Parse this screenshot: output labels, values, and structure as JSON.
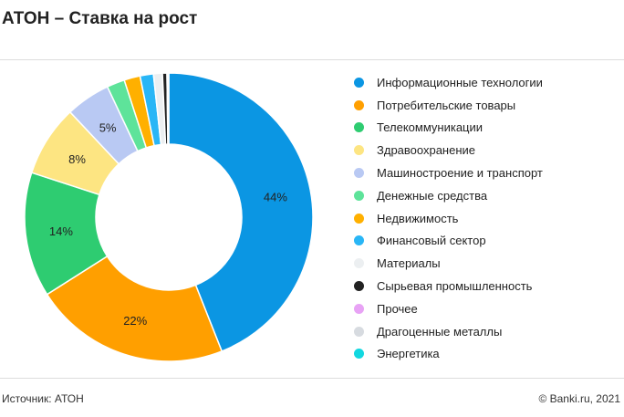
{
  "title": "АТОН – Ставка на рост",
  "footer": {
    "source": "Источник: АТОН",
    "copyright": "© Banki.ru, 2021"
  },
  "chart_data": {
    "type": "pie",
    "donut": true,
    "title": "АТОН – Ставка на рост",
    "categories": [
      "Информационные технологии",
      "Потребительские товары",
      "Телекоммуникации",
      "Здравоохранение",
      "Машиностроение и транспорт",
      "Денежные средства",
      "Недвижимость",
      "Финансовый сектор",
      "Материалы",
      "Сырьевая промышленность",
      "Прочее",
      "Драгоценные металлы",
      "Энергетика"
    ],
    "values": [
      44,
      22,
      14,
      8,
      5,
      2,
      1.8,
      1.5,
      1.0,
      0.5,
      0.1,
      0.05,
      0.05
    ],
    "labels": [
      "44%",
      "22%",
      "14%",
      "8%",
      "5%",
      "",
      "",
      "",
      "",
      "",
      "",
      "",
      ""
    ],
    "colors": [
      "#0b96e3",
      "#ff9f00",
      "#2ecc71",
      "#fde582",
      "#b9c9f3",
      "#5ee39a",
      "#ffb000",
      "#29b6f6",
      "#eceff1",
      "#222222",
      "#e8a3f5",
      "#d7dbe0",
      "#12d8e0"
    ],
    "legend": "right"
  }
}
